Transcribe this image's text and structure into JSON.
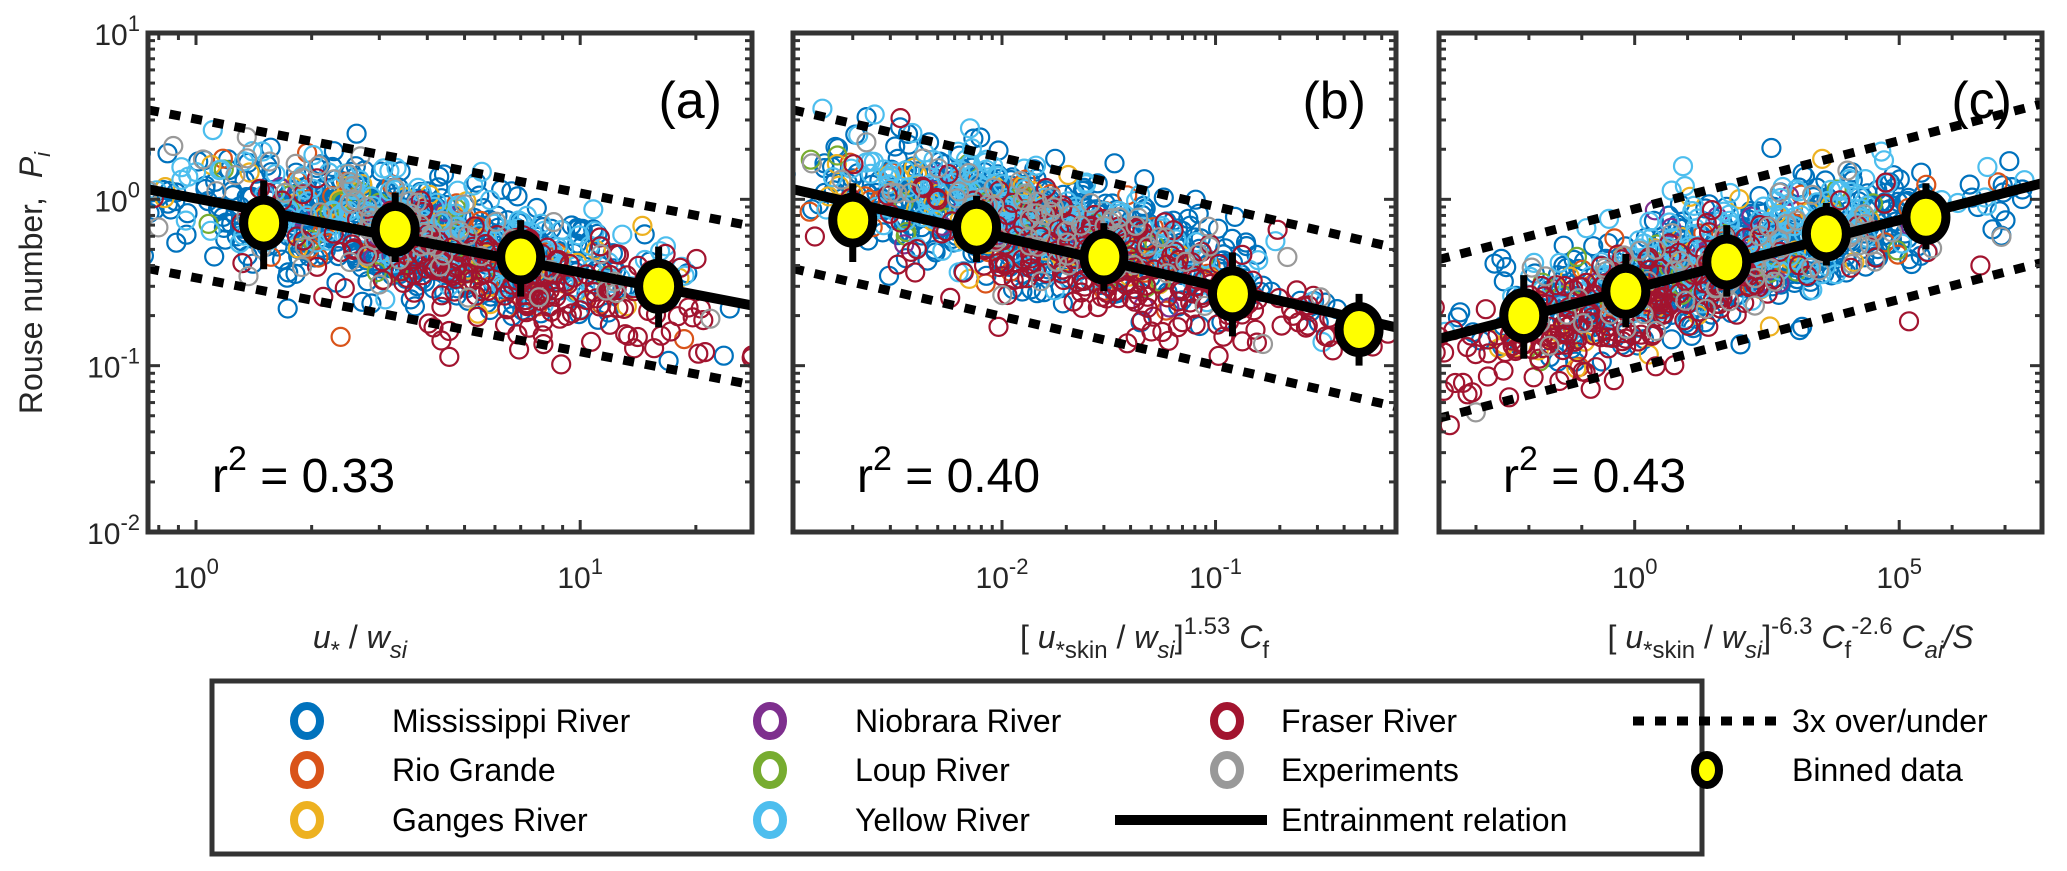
{
  "chart_data": {
    "type": "scatter",
    "ylabel": "Rouse number,",
    "ylabel_symbol": "P",
    "ylabel_subscript": "i",
    "yscale": "log",
    "ylim": [
      0.01,
      10
    ],
    "yticks": [
      {
        "base": "10",
        "exp": "1",
        "value": 10
      },
      {
        "base": "10",
        "exp": "0",
        "value": 1
      },
      {
        "base": "10",
        "exp": "-1",
        "value": 0.1
      },
      {
        "base": "10",
        "exp": "-2",
        "value": 0.01
      }
    ],
    "series_styles": [
      {
        "name": "Mississippi River",
        "color": "#0072BD"
      },
      {
        "name": "Rio Grande",
        "color": "#D95319"
      },
      {
        "name": "Ganges River",
        "color": "#EDB120"
      },
      {
        "name": "Niobrara River",
        "color": "#7E2F8E"
      },
      {
        "name": "Loup River",
        "color": "#77AC30"
      },
      {
        "name": "Yellow River",
        "color": "#4DBEEE"
      },
      {
        "name": "Fraser River",
        "color": "#A2142F"
      },
      {
        "name": "Experiments",
        "color": "#999999"
      }
    ],
    "panels": [
      {
        "label": "(a)",
        "r2_text": "= 0.33",
        "r2_prefix": "r",
        "r2_exp": "2",
        "xlabel_parts": [
          {
            "t": "u",
            "style": "italic"
          },
          {
            "t": "*",
            "style": "sub"
          },
          {
            "t": " / ",
            "style": "normal"
          },
          {
            "t": "w",
            "style": "italic"
          },
          {
            "t": "si",
            "style": "sub-italic"
          }
        ],
        "xscale": "log",
        "xlim": [
          0.75,
          28
        ],
        "xticks": [
          {
            "base": "10",
            "exp": "0",
            "value": 1
          },
          {
            "base": "10",
            "exp": "1",
            "value": 10
          }
        ],
        "relation": {
          "x": [
            0.75,
            28
          ],
          "y": [
            1.15,
            0.23
          ]
        },
        "band_factor": 3,
        "binned": [
          {
            "x": 1.5,
            "y": 0.72,
            "ylo": 0.38,
            "yhi": 1.3
          },
          {
            "x": 3.3,
            "y": 0.66,
            "ylo": 0.42,
            "yhi": 1.1
          },
          {
            "x": 7.0,
            "y": 0.45,
            "ylo": 0.26,
            "yhi": 0.75
          },
          {
            "x": 16.0,
            "y": 0.3,
            "ylo": 0.17,
            "yhi": 0.52
          }
        ],
        "cloud": {
          "x_center_log": 0.55,
          "x_spread_log": 0.55,
          "slope": -0.46,
          "intercept_log": 0.03
        }
      },
      {
        "label": "(b)",
        "r2_text": "= 0.40",
        "r2_prefix": "r",
        "r2_exp": "2",
        "xlabel_parts": [
          {
            "t": "[ ",
            "style": "normal"
          },
          {
            "t": "u",
            "style": "italic"
          },
          {
            "t": "*skin",
            "style": "sub"
          },
          {
            "t": " / ",
            "style": "normal"
          },
          {
            "t": "w",
            "style": "italic"
          },
          {
            "t": "si",
            "style": "sub-italic"
          },
          {
            "t": "]",
            "style": "normal"
          },
          {
            "t": "1.53",
            "style": "sup"
          },
          {
            "t": "  C",
            "style": "italic"
          },
          {
            "t": "f",
            "style": "sub"
          }
        ],
        "xscale": "log",
        "xlim": [
          0.00105,
          0.7
        ],
        "xticks": [
          {
            "base": "10",
            "exp": "-2",
            "value": 0.01
          },
          {
            "base": "10",
            "exp": "-1",
            "value": 0.1
          }
        ],
        "relation": {
          "x": [
            0.00105,
            0.7
          ],
          "y": [
            1.15,
            0.17
          ]
        },
        "band_factor": 3,
        "binned": [
          {
            "x": 0.002,
            "y": 0.75,
            "ylo": 0.42,
            "yhi": 1.25
          },
          {
            "x": 0.0076,
            "y": 0.68,
            "ylo": 0.42,
            "yhi": 1.05
          },
          {
            "x": 0.03,
            "y": 0.45,
            "ylo": 0.28,
            "yhi": 0.72
          },
          {
            "x": 0.12,
            "y": 0.27,
            "ylo": 0.15,
            "yhi": 0.48
          },
          {
            "x": 0.47,
            "y": 0.165,
            "ylo": 0.1,
            "yhi": 0.27
          }
        ],
        "cloud": {
          "x_center_log": -1.9,
          "x_spread_log": 0.9,
          "slope": -0.3,
          "intercept_log": -0.72
        }
      },
      {
        "label": "(c)",
        "r2_text": "= 0.43",
        "r2_prefix": "r",
        "r2_exp": "2",
        "xlabel_parts": [
          {
            "t": "[ ",
            "style": "normal"
          },
          {
            "t": "u",
            "style": "italic"
          },
          {
            "t": "*skin",
            "style": "sub"
          },
          {
            "t": " / ",
            "style": "normal"
          },
          {
            "t": "w",
            "style": "italic"
          },
          {
            "t": "si",
            "style": "sub-italic"
          },
          {
            "t": "]",
            "style": "normal"
          },
          {
            "t": "-6.3",
            "style": "sup"
          },
          {
            "t": "  C",
            "style": "italic"
          },
          {
            "t": "f",
            "style": "sub"
          },
          {
            "t": "-2.6",
            "style": "sup"
          },
          {
            "t": "  C",
            "style": "italic"
          },
          {
            "t": "ai",
            "style": "sub-italic"
          },
          {
            "t": "/S",
            "style": "italic"
          }
        ],
        "xscale": "log",
        "xlim": [
          0.0002,
          50000000
        ],
        "xticks": [
          {
            "base": "10",
            "exp": "0",
            "value": 1
          },
          {
            "base": "10",
            "exp": "5",
            "value": 100000
          }
        ],
        "relation": {
          "x": [
            0.0002,
            50000000
          ],
          "y": [
            0.145,
            1.25
          ]
        },
        "band_factor": 3,
        "binned": [
          {
            "x": 0.008,
            "y": 0.2,
            "ylo": 0.11,
            "yhi": 0.35
          },
          {
            "x": 0.68,
            "y": 0.28,
            "ylo": 0.17,
            "yhi": 0.47
          },
          {
            "x": 55,
            "y": 0.42,
            "ylo": 0.26,
            "yhi": 0.7
          },
          {
            "x": 4200,
            "y": 0.62,
            "ylo": 0.4,
            "yhi": 0.95
          },
          {
            "x": 320000,
            "y": 0.78,
            "ylo": 0.5,
            "yhi": 1.25
          }
        ],
        "cloud": {
          "x_center_log": 1.8,
          "x_spread_log": 3.9,
          "slope": 0.085,
          "intercept_log": -0.52
        }
      }
    ],
    "legend": {
      "placement": "bottom",
      "entries": [
        {
          "label": "Mississippi River",
          "kind": "circle",
          "color": "#0072BD"
        },
        {
          "label": "Rio Grande",
          "kind": "circle",
          "color": "#D95319"
        },
        {
          "label": "Ganges River",
          "kind": "circle",
          "color": "#EDB120"
        },
        {
          "label": "Niobrara River",
          "kind": "circle",
          "color": "#7E2F8E"
        },
        {
          "label": "Loup River",
          "kind": "circle",
          "color": "#77AC30"
        },
        {
          "label": "Yellow River",
          "kind": "circle",
          "color": "#4DBEEE"
        },
        {
          "label": "Fraser River",
          "kind": "circle",
          "color": "#A2142F"
        },
        {
          "label": "Experiments",
          "kind": "circle",
          "color": "#999999"
        },
        {
          "label": "Entrainment relation",
          "kind": "line",
          "color": "#000000"
        },
        {
          "label": "3x over/under",
          "kind": "dotted",
          "color": "#000000"
        },
        {
          "label": "Binned data",
          "kind": "binned",
          "color": "#FFFF00"
        }
      ]
    }
  }
}
